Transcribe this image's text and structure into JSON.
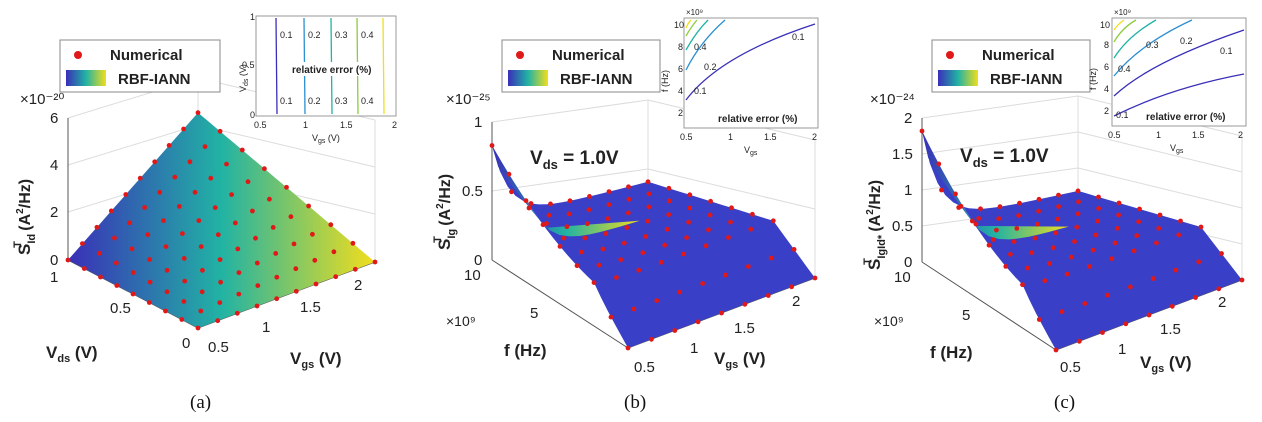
{
  "legend": {
    "numerical": "Numerical",
    "surrogate": "RBF-IANN"
  },
  "colors": {
    "dot": "#e01818",
    "low": "#3a2fb8",
    "mid": "#21b3a4",
    "high": "#f2de1c",
    "grid": "#dcdcdc",
    "axis": "#555555",
    "box": "#999999"
  },
  "panels": [
    {
      "caption": "(a)",
      "zlabel": "S_Id^T (A²/Hz)",
      "zlabel_main": "S",
      "zlabel_sub": "Id",
      "zlabel_sup": "T",
      "zlabel_unit": "(A",
      "exponent": "×10⁻²⁰",
      "z_ticks": [
        "0",
        "2",
        "4",
        "6"
      ],
      "x_label": "V_gs (V)",
      "x_ticks": [
        "0.5",
        "1",
        "1.5",
        "2"
      ],
      "y_label": "V_ds (V)",
      "y_ticks": [
        "0",
        "0.5",
        "1"
      ],
      "inset": {
        "xlabel": "V_gs (V)",
        "ylabel": "V_ds (V)",
        "title": "relative error (%)",
        "x_ticks": [
          "0.5",
          "1",
          "1.5",
          "2"
        ],
        "y_ticks": [
          "0",
          "0.5",
          "1"
        ],
        "contour_labels": [
          "0.1",
          "0.2",
          "0.3",
          "0.4"
        ]
      }
    },
    {
      "caption": "(b)",
      "condition": "V_ds = 1.0V",
      "zlabel_main": "S",
      "zlabel_sub": "Ig",
      "zlabel_sup": "T",
      "exponent": "×10⁻²⁵",
      "z_ticks": [
        "0",
        "0.5",
        "1"
      ],
      "x_label": "V_gs (V)",
      "x_ticks": [
        "0.5",
        "1",
        "1.5",
        "2"
      ],
      "y_label": "f (Hz)",
      "y_ticks": [
        "5",
        "10"
      ],
      "y_exponent": "×10⁹",
      "inset": {
        "xlabel": "V_gs",
        "ylabel": "f (Hz)",
        "title": "relative error (%)",
        "x_ticks": [
          "0.5",
          "1",
          "1.5",
          "2"
        ],
        "y_ticks": [
          "2",
          "4",
          "6",
          "8",
          "10"
        ],
        "y_exponent": "×10⁹",
        "contour_labels": [
          "0.1",
          "0.1",
          "0.2",
          "0.4"
        ]
      }
    },
    {
      "caption": "(c)",
      "condition": "V_ds = 1.0V",
      "zlabel_main": "S",
      "zlabel_sub": "IgId*",
      "zlabel_sup": "T",
      "exponent": "×10⁻²⁴",
      "z_ticks": [
        "0",
        "0.5",
        "1",
        "1.5",
        "2"
      ],
      "x_label": "V_gs (V)",
      "x_ticks": [
        "0.5",
        "1",
        "1.5",
        "2"
      ],
      "y_label": "f (Hz)",
      "y_ticks": [
        "5",
        "10"
      ],
      "y_exponent": "×10⁹",
      "inset": {
        "xlabel": "V_gs",
        "ylabel": "f (Hz)",
        "title": "relative error (%)",
        "x_ticks": [
          "0.5",
          "1",
          "1.5",
          "2"
        ],
        "y_ticks": [
          "2",
          "4",
          "6",
          "8",
          "10"
        ],
        "y_exponent": "×10⁹",
        "contour_labels": [
          "0.1",
          "0.1",
          "0.2",
          "0.3",
          "0.4"
        ]
      }
    }
  ],
  "chart_data": [
    {
      "type": "surface",
      "title": "",
      "xlabel": "V_gs (V)",
      "ylabel": "V_ds (V)",
      "zlabel": "S_Id^T (A²/Hz)",
      "xlim": [
        0.5,
        2
      ],
      "ylim": [
        0,
        1
      ],
      "zlim": [
        0,
        6
      ],
      "z_scale": "1e-20",
      "surface": "approximately linear in V_gs and V_ds, ~0 at V_gs=0.5 or V_ds=0, reaching ~3.7 at V_gs=2, V_ds=1",
      "series": [
        {
          "name": "Numerical",
          "type": "scatter"
        },
        {
          "name": "RBF-IANN",
          "type": "surface"
        }
      ],
      "legend": "top-left",
      "grid": true
    },
    {
      "type": "surface",
      "title": "",
      "annotation": "V_ds = 1.0V",
      "xlabel": "V_gs (V)",
      "ylabel": "f (Hz)",
      "zlabel": "S_Ig^T (A²/Hz)",
      "xlim": [
        0.5,
        2
      ],
      "ylim": [
        0,
        10
      ],
      "y_scale": "1e9",
      "zlim": [
        0,
        1
      ],
      "z_scale": "1e-25",
      "surface": "peak ~0.8 at V_gs=0.5, f=10; decays quickly toward ~0.3 plateau, ~0 at low f",
      "series": [
        {
          "name": "Numerical",
          "type": "scatter"
        },
        {
          "name": "RBF-IANN",
          "type": "surface"
        }
      ],
      "legend": "top-left",
      "grid": true
    },
    {
      "type": "surface",
      "title": "",
      "annotation": "V_ds = 1.0V",
      "xlabel": "V_gs (V)",
      "ylabel": "f (Hz)",
      "zlabel": "S_IgId*^T (A²/Hz)",
      "xlim": [
        0.5,
        2
      ],
      "ylim": [
        0,
        10
      ],
      "y_scale": "1e9",
      "zlim": [
        0,
        2
      ],
      "z_scale": "1e-24",
      "surface": "peak ~1.8 at V_gs=0.5, f=10; decays quickly toward ~0.5 plateau, ~0 at low f",
      "series": [
        {
          "name": "Numerical",
          "type": "scatter"
        },
        {
          "name": "RBF-IANN",
          "type": "surface"
        }
      ],
      "legend": "top-left",
      "grid": true
    }
  ]
}
